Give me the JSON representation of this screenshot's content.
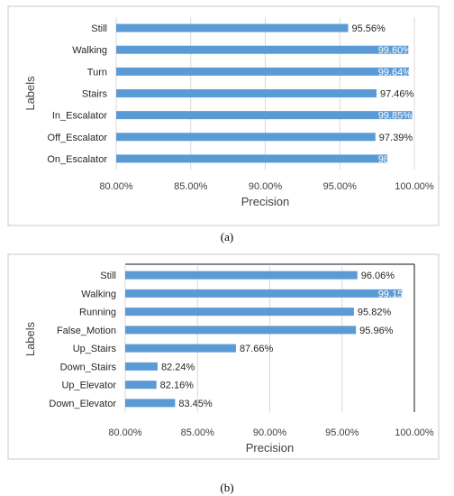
{
  "colors": {
    "bar": "#5b9bd5",
    "grid": "#d9d9d9",
    "frame": "#c8c8c8",
    "label_dark": "#262626",
    "label_light": "#ffffff"
  },
  "chart_data": [
    {
      "id": "a",
      "caption": "(a)",
      "type": "bar",
      "orientation": "horizontal",
      "xlabel": "Precision",
      "ylabel": "Labels",
      "xlim": [
        80,
        100
      ],
      "xticks": [
        "80.00%",
        "85.00%",
        "90.00%",
        "95.00%",
        "100.00%"
      ],
      "grid": true,
      "categories": [
        "Still",
        "Walking",
        "Turn",
        "Stairs",
        "In_Escalator",
        "Off_Escalator",
        "On_Escalator"
      ],
      "values": [
        95.56,
        99.6,
        99.64,
        97.46,
        99.85,
        97.39,
        98.2
      ],
      "value_labels": [
        "95.56%",
        "99.60%",
        "99.64%",
        "97.46%",
        "99.85%",
        "97.39%",
        "98.20%"
      ]
    },
    {
      "id": "b",
      "caption": "(b)",
      "type": "bar",
      "orientation": "horizontal",
      "xlabel": "Precision",
      "ylabel": "Labels",
      "xlim": [
        80,
        100
      ],
      "xticks": [
        "80.00%",
        "85.00%",
        "90.00%",
        "95.00%",
        "100.00%"
      ],
      "grid": true,
      "categories": [
        "Still",
        "Walking",
        "Running",
        "False_Motion",
        "Up_Stairs",
        "Down_Stairs",
        "Up_Elevator",
        "Down_Elevator"
      ],
      "values": [
        96.06,
        99.15,
        95.82,
        95.96,
        87.66,
        82.24,
        82.16,
        83.45
      ],
      "value_labels": [
        "96.06%",
        "99.15%",
        "95.82%",
        "95.96%",
        "87.66%",
        "82.24%",
        "82.16%",
        "83.45%"
      ]
    }
  ]
}
